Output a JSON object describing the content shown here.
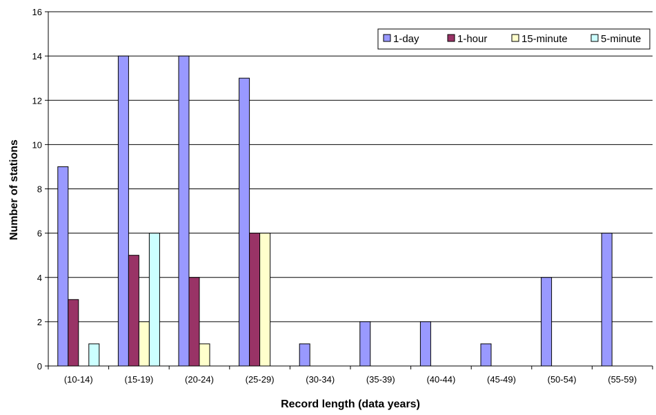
{
  "chart_data": {
    "type": "bar",
    "title": "",
    "xlabel": "Record length (data years)",
    "ylabel": "Number of stations",
    "categories": [
      "(10-14)",
      "(15-19)",
      "(20-24)",
      "(25-29)",
      "(30-34)",
      "(35-39)",
      "(40-44)",
      "(45-49)",
      "(50-54)",
      "(55-59)"
    ],
    "ylim": [
      0,
      16
    ],
    "yticks": [
      0,
      2,
      4,
      6,
      8,
      10,
      12,
      14,
      16
    ],
    "grid": true,
    "legend_position": "top-right",
    "series": [
      {
        "name": "1-day",
        "color": "#9999ff",
        "values": [
          9,
          14,
          14,
          13,
          1,
          2,
          2,
          1,
          4,
          6
        ]
      },
      {
        "name": "1-hour",
        "color": "#993366",
        "values": [
          3,
          5,
          4,
          6,
          0,
          0,
          0,
          0,
          0,
          0
        ]
      },
      {
        "name": "15-minute",
        "color": "#ffffcc",
        "values": [
          0,
          2,
          1,
          6,
          0,
          0,
          0,
          0,
          0,
          0
        ]
      },
      {
        "name": "5-minute",
        "color": "#ccffff",
        "values": [
          1,
          6,
          0,
          0,
          0,
          0,
          0,
          0,
          0,
          0
        ]
      }
    ]
  }
}
